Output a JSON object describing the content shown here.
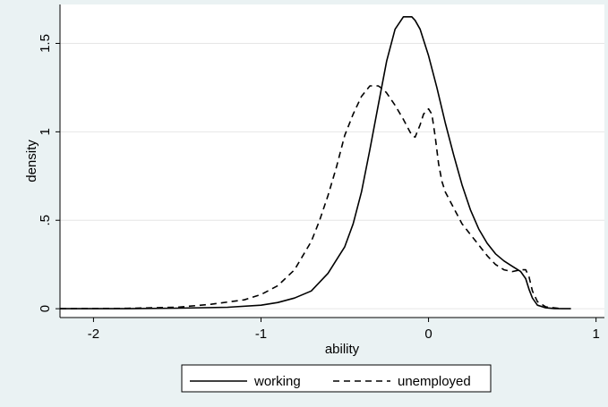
{
  "chart_data": {
    "type": "line",
    "title": "",
    "xlabel": "ability",
    "ylabel": "density",
    "xlim": [
      -2.2,
      1.05
    ],
    "ylim": [
      -0.05,
      1.72
    ],
    "xticks": [
      -2,
      -1,
      0,
      1
    ],
    "xtick_labels": [
      "-2",
      "-1",
      "0",
      "1"
    ],
    "yticks": [
      0,
      0.5,
      1,
      1.5
    ],
    "ytick_labels": [
      "0",
      ".5",
      "1",
      "1.5"
    ],
    "grid": "horizontal",
    "legend_position": "bottom",
    "series": [
      {
        "name": "working",
        "style": "solid",
        "color": "#000000",
        "x": [
          -2.2,
          -1.8,
          -1.5,
          -1.2,
          -1.0,
          -0.9,
          -0.8,
          -0.7,
          -0.6,
          -0.5,
          -0.45,
          -0.4,
          -0.35,
          -0.3,
          -0.25,
          -0.2,
          -0.15,
          -0.1,
          -0.08,
          -0.05,
          0.0,
          0.05,
          0.1,
          0.15,
          0.2,
          0.25,
          0.3,
          0.35,
          0.4,
          0.45,
          0.5,
          0.55,
          0.58,
          0.6,
          0.62,
          0.65,
          0.7,
          0.75,
          0.8,
          0.85
        ],
        "y": [
          0.0,
          0.0,
          0.003,
          0.008,
          0.02,
          0.035,
          0.06,
          0.1,
          0.2,
          0.35,
          0.48,
          0.66,
          0.9,
          1.15,
          1.4,
          1.58,
          1.65,
          1.65,
          1.63,
          1.58,
          1.43,
          1.25,
          1.05,
          0.87,
          0.7,
          0.56,
          0.45,
          0.37,
          0.31,
          0.27,
          0.24,
          0.21,
          0.17,
          0.11,
          0.06,
          0.02,
          0.005,
          0.001,
          0.0,
          0.0
        ]
      },
      {
        "name": "unemployed",
        "style": "dashed",
        "color": "#000000",
        "x": [
          -2.2,
          -1.8,
          -1.5,
          -1.3,
          -1.1,
          -1.0,
          -0.9,
          -0.8,
          -0.7,
          -0.65,
          -0.6,
          -0.55,
          -0.5,
          -0.45,
          -0.4,
          -0.35,
          -0.3,
          -0.27,
          -0.25,
          -0.2,
          -0.15,
          -0.1,
          -0.08,
          -0.05,
          -0.03,
          0.0,
          0.02,
          0.04,
          0.06,
          0.08,
          0.1,
          0.15,
          0.2,
          0.25,
          0.3,
          0.35,
          0.4,
          0.45,
          0.5,
          0.55,
          0.58,
          0.6,
          0.62,
          0.65,
          0.7,
          0.8
        ],
        "y": [
          0.0,
          0.002,
          0.008,
          0.025,
          0.05,
          0.08,
          0.13,
          0.22,
          0.38,
          0.5,
          0.64,
          0.8,
          0.98,
          1.1,
          1.2,
          1.26,
          1.26,
          1.24,
          1.22,
          1.15,
          1.07,
          0.98,
          0.97,
          1.04,
          1.1,
          1.13,
          1.1,
          0.97,
          0.82,
          0.72,
          0.66,
          0.57,
          0.48,
          0.42,
          0.36,
          0.3,
          0.25,
          0.22,
          0.21,
          0.22,
          0.22,
          0.18,
          0.1,
          0.04,
          0.01,
          0.0
        ]
      }
    ]
  }
}
